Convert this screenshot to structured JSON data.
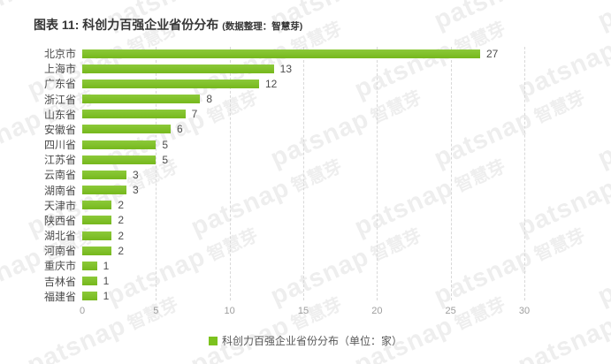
{
  "header": {
    "title": "图表 11: 科创力百强企业省份分布",
    "subtitle": "(数据整理：智慧芽)"
  },
  "legend": {
    "label": "科创力百强企业省份分布（单位：家）"
  },
  "watermark": {
    "brand": "patsnap",
    "cn": "智慧芽"
  },
  "colors": {
    "bar": "#7cc21e",
    "grid": "#d8d8d8",
    "title": "#363636",
    "category": "#4a4a4a",
    "value": "#4d4d4d",
    "tick": "#9e9e9e",
    "legend": "#595959"
  },
  "chart_data": {
    "type": "bar",
    "orientation": "horizontal",
    "title": "图表 11: 科创力百强企业省份分布",
    "categories": [
      "北京市",
      "上海市",
      "广东省",
      "浙江省",
      "山东省",
      "安徽省",
      "四川省",
      "江苏省",
      "云南省",
      "湖南省",
      "天津市",
      "陕西省",
      "湖北省",
      "河南省",
      "重庆市",
      "吉林省",
      "福建省"
    ],
    "values": [
      27,
      13,
      12,
      8,
      7,
      6,
      5,
      5,
      3,
      3,
      2,
      2,
      2,
      2,
      1,
      1,
      1
    ],
    "unit": "家",
    "xlabel": "",
    "ylabel": "",
    "xlim": [
      0,
      30
    ],
    "xticks": [
      0,
      5,
      10,
      15,
      20,
      25,
      30
    ],
    "grid": "vertical-dashed",
    "legend_position": "bottom"
  }
}
